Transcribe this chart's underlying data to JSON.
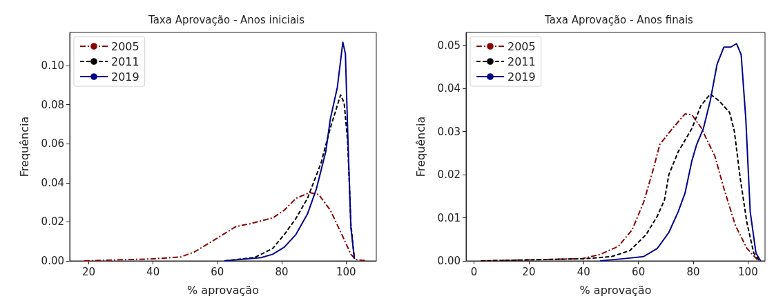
{
  "chart_data": [
    {
      "type": "line",
      "title": "Taxa Aprovação - Anos iniciais",
      "xlabel": "% aprovação",
      "ylabel": "Frequência",
      "xlim": [
        14.1,
        109.4
      ],
      "ylim": [
        0,
        0.117
      ],
      "xticks": [
        20,
        40,
        60,
        80,
        100
      ],
      "yticks": [
        {
          "value": 0,
          "label": "0.00"
        },
        {
          "value": 0.02,
          "label": "0.02"
        },
        {
          "value": 0.04,
          "label": "0.04"
        },
        {
          "value": 0.06,
          "label": "0.06"
        },
        {
          "value": 0.08,
          "label": "0.08"
        },
        {
          "value": 0.1,
          "label": "0.10"
        }
      ],
      "grid": false,
      "legend": "top left",
      "marker": "none",
      "series": [
        {
          "name": "2005",
          "color": "#8b0000",
          "line_style": "dashdot",
          "x": [
            18.6,
            39.3,
            48.6,
            52.9,
            59.3,
            65.8,
            70.1,
            77.2,
            80.8,
            84.4,
            88.7,
            91.5,
            95.1,
            98.7,
            101.5,
            103,
            106.6
          ],
          "values": [
            0,
            0.001,
            0.002,
            0.0046,
            0.011,
            0.0176,
            0.019,
            0.022,
            0.026,
            0.032,
            0.035,
            0.034,
            0.026,
            0.0135,
            0.0034,
            0.0007,
            0
          ]
        },
        {
          "name": "2011",
          "color": "#000000",
          "line_style": "dashed",
          "x": [
            62.2,
            71.5,
            77.2,
            80.8,
            84.4,
            88,
            92.2,
            95.1,
            98.3,
            99.4,
            100.5,
            101.5,
            102.6
          ],
          "values": [
            0,
            0.0017,
            0.0064,
            0.0135,
            0.0217,
            0.032,
            0.05,
            0.068,
            0.085,
            0.081,
            0.061,
            0.019,
            0.001
          ]
        },
        {
          "name": "2019",
          "color": "#00008b",
          "line_style": "solid",
          "x": [
            62.2,
            73.6,
            77.2,
            80.8,
            84.4,
            88,
            90.8,
            93.7,
            95.1,
            97.3,
            99,
            99.8,
            100.5,
            101.5,
            102.6
          ],
          "values": [
            0,
            0.0017,
            0.0034,
            0.007,
            0.0135,
            0.024,
            0.037,
            0.056,
            0.0726,
            0.089,
            0.112,
            0.106,
            0.0667,
            0.017,
            0.001
          ]
        }
      ]
    },
    {
      "type": "line",
      "title": "Taxa Aprovação - Anos finais",
      "xlabel": "% aprovação",
      "ylabel": "Frequência",
      "xlim": [
        -2.9,
        106.2
      ],
      "ylim": [
        0,
        0.053
      ],
      "xticks": [
        0,
        20,
        40,
        60,
        80,
        100
      ],
      "yticks": [
        {
          "value": 0,
          "label": "0.00"
        },
        {
          "value": 0.01,
          "label": "0.01"
        },
        {
          "value": 0.02,
          "label": "0.02"
        },
        {
          "value": 0.03,
          "label": "0.03"
        },
        {
          "value": 0.04,
          "label": "0.04"
        },
        {
          "value": 0.05,
          "label": "0.05"
        }
      ],
      "grid": false,
      "legend": "top left",
      "marker": "none",
      "series": [
        {
          "name": "2005",
          "color": "#8b0000",
          "line_style": "dashdot",
          "x": [
            2.5,
            39.3,
            46,
            52.7,
            57.7,
            61.9,
            65.3,
            67.8,
            72.8,
            77,
            79.5,
            82.8,
            87.9,
            91.2,
            95.4,
            99.6,
            103.8
          ],
          "values": [
            0,
            0.0005,
            0.0015,
            0.0034,
            0.0072,
            0.0136,
            0.021,
            0.027,
            0.031,
            0.0341,
            0.0339,
            0.031,
            0.0243,
            0.0168,
            0.0082,
            0.0029,
            0
          ]
        },
        {
          "name": "2011",
          "color": "#000000",
          "line_style": "dashed",
          "x": [
            2.5,
            40.2,
            50.2,
            56.9,
            62.8,
            66.9,
            69.5,
            71.1,
            74.5,
            79.5,
            82.8,
            86.2,
            89.5,
            93.3,
            95,
            97.1,
            99.6,
            102.1,
            104.2
          ],
          "values": [
            0,
            0.0005,
            0.001,
            0.0024,
            0.0061,
            0.0104,
            0.0141,
            0.02,
            0.0253,
            0.0307,
            0.036,
            0.0387,
            0.0371,
            0.0344,
            0.0301,
            0.0194,
            0.0088,
            0.0018,
            0
          ]
        },
        {
          "name": "2019",
          "color": "#00008b",
          "line_style": "solid",
          "x": [
            46,
            54.4,
            61.9,
            66.9,
            71.1,
            74.5,
            77,
            79.5,
            81.2,
            83.7,
            86.2,
            88.7,
            91.2,
            93.7,
            95.8,
            97.5,
            99.2,
            100.8,
            102.9,
            104.6
          ],
          "values": [
            0,
            0.0005,
            0.001,
            0.0029,
            0.0066,
            0.0114,
            0.0157,
            0.0232,
            0.0269,
            0.0307,
            0.0371,
            0.0456,
            0.0496,
            0.0496,
            0.0504,
            0.0478,
            0.0328,
            0.0114,
            0.0018,
            0
          ]
        }
      ]
    }
  ]
}
